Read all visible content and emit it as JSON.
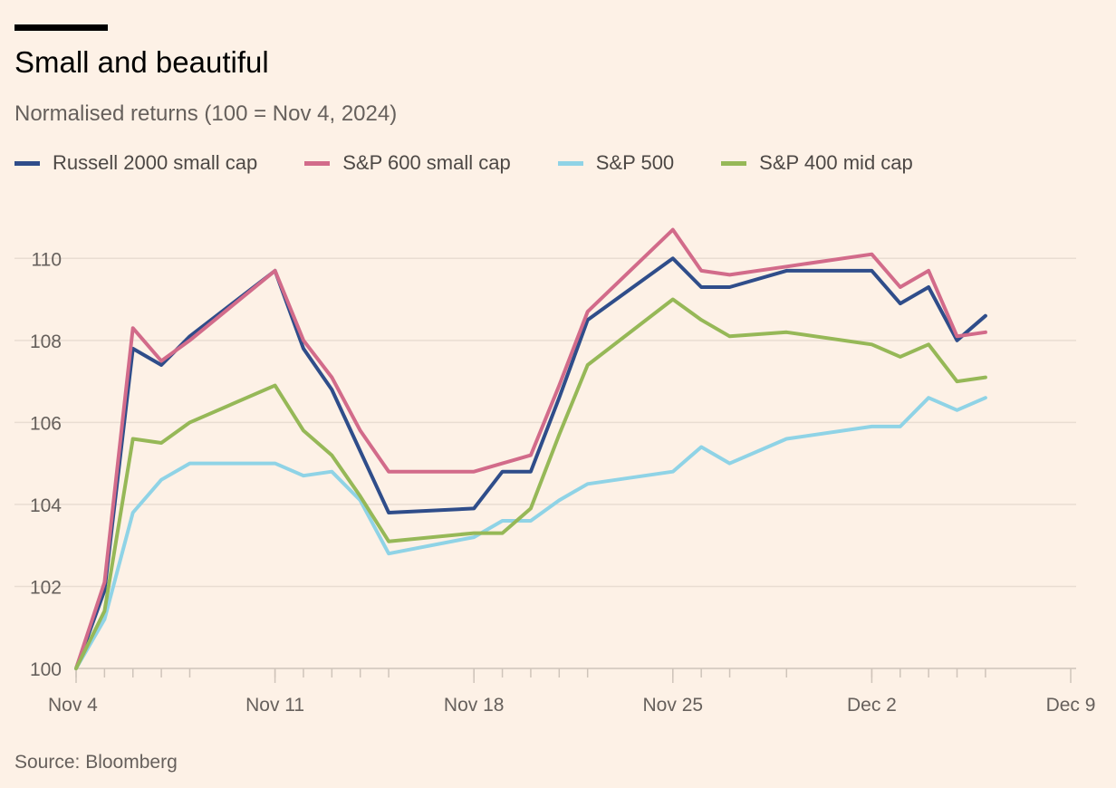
{
  "header": {
    "title": "Small and beautiful",
    "subtitle": "Normalised returns (100 = Nov 4, 2024)"
  },
  "footer": {
    "source": "Source: Bloomberg"
  },
  "colors": {
    "background": "#fdf1e6",
    "gridline": "#e9ddd2",
    "axis": "#cfc4ba",
    "tick_text": "#66605c"
  },
  "chart_data": {
    "type": "line",
    "title": "Small and beautiful",
    "subtitle": "Normalised returns (100 = Nov 4, 2024)",
    "x": [
      "2024-11-04",
      "2024-11-05",
      "2024-11-06",
      "2024-11-07",
      "2024-11-08",
      "2024-11-11",
      "2024-11-12",
      "2024-11-13",
      "2024-11-14",
      "2024-11-15",
      "2024-11-18",
      "2024-11-19",
      "2024-11-20",
      "2024-11-21",
      "2024-11-22",
      "2024-11-25",
      "2024-11-26",
      "2024-11-27",
      "2024-11-29",
      "2024-12-02",
      "2024-12-03",
      "2024-12-04",
      "2024-12-05",
      "2024-12-06"
    ],
    "series": [
      {
        "name": "Russell 2000 small cap",
        "color": "#2f4d8a",
        "values": [
          100.0,
          101.9,
          107.8,
          107.4,
          108.1,
          109.7,
          107.8,
          106.8,
          105.3,
          103.8,
          103.9,
          104.8,
          104.8,
          106.6,
          108.5,
          110.0,
          109.3,
          109.3,
          109.7,
          109.7,
          108.9,
          109.3,
          108.0,
          108.6
        ]
      },
      {
        "name": "S&P 600 small cap",
        "color": "#d26b8a",
        "values": [
          100.0,
          102.1,
          108.3,
          107.5,
          108.0,
          109.7,
          108.0,
          107.1,
          105.8,
          104.8,
          104.8,
          105.0,
          105.2,
          106.9,
          108.7,
          110.7,
          109.7,
          109.6,
          109.8,
          110.1,
          109.3,
          109.7,
          108.1,
          108.2
        ]
      },
      {
        "name": "S&P 500",
        "color": "#8fd3e6",
        "values": [
          100.0,
          101.2,
          103.8,
          104.6,
          105.0,
          105.0,
          104.7,
          104.8,
          104.1,
          102.8,
          103.2,
          103.6,
          103.6,
          104.1,
          104.5,
          104.8,
          105.4,
          105.0,
          105.6,
          105.9,
          105.9,
          106.6,
          106.3,
          106.6
        ]
      },
      {
        "name": "S&P 400 mid cap",
        "color": "#96b857",
        "values": [
          100.0,
          101.4,
          105.6,
          105.5,
          106.0,
          106.9,
          105.8,
          105.2,
          104.2,
          103.1,
          103.3,
          103.3,
          103.9,
          105.7,
          107.4,
          109.0,
          108.5,
          108.1,
          108.2,
          107.9,
          107.6,
          107.9,
          107.0,
          107.1
        ]
      }
    ],
    "x_ticks": [
      {
        "date": "2024-11-04",
        "label": "Nov 4"
      },
      {
        "date": "2024-11-11",
        "label": "Nov 11"
      },
      {
        "date": "2024-11-18",
        "label": "Nov 18"
      },
      {
        "date": "2024-11-25",
        "label": "Nov 25"
      },
      {
        "date": "2024-12-02",
        "label": "Dec 2"
      },
      {
        "date": "2024-12-09",
        "label": "Dec 9"
      }
    ],
    "xlim": [
      "2024-11-04",
      "2024-12-09"
    ],
    "y_ticks": [
      100,
      102,
      104,
      106,
      108,
      110
    ],
    "ylim": [
      100,
      111
    ],
    "xlabel": "",
    "ylabel": "",
    "grid": true,
    "legend": "top"
  }
}
